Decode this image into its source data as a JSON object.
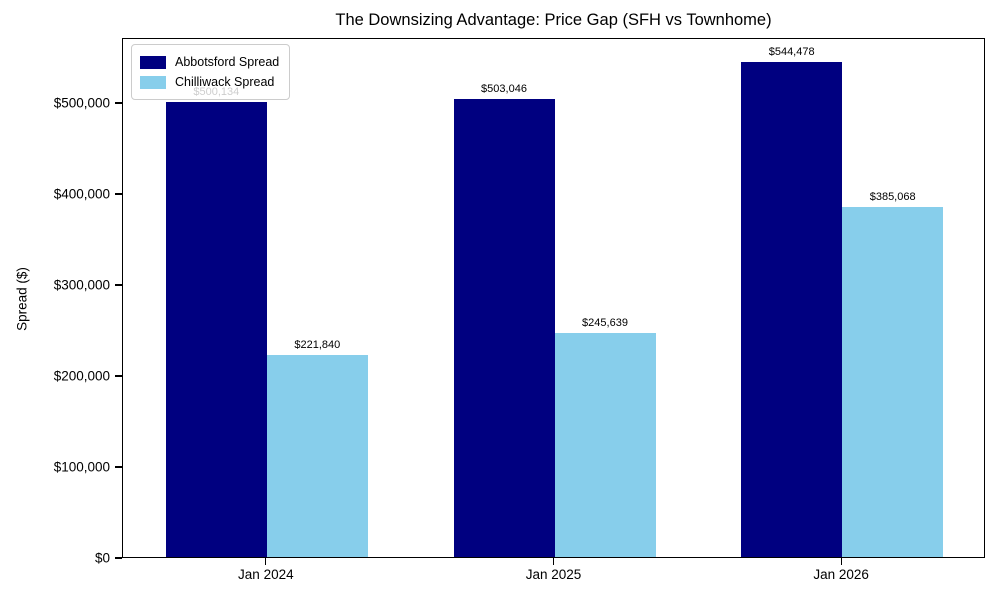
{
  "title": "The Downsizing Advantage: Price Gap (SFH vs Townhome)",
  "chart_data": {
    "type": "bar",
    "title": "The Downsizing Advantage: Price Gap (SFH vs Townhome)",
    "xlabel": "",
    "ylabel": "Spread ($)",
    "categories": [
      "Jan 2024",
      "Jan 2025",
      "Jan 2026"
    ],
    "series": [
      {
        "name": "Abbotsford Spread",
        "color": "#000080",
        "values": [
          500134,
          503046,
          544478
        ],
        "value_labels": [
          "$500,134",
          "$503,046",
          "$544,478"
        ]
      },
      {
        "name": "Chilliwack Spread",
        "color": "#87CEEB",
        "values": [
          221840,
          245639,
          385068
        ],
        "value_labels": [
          "$221,840",
          "$245,639",
          "$385,068"
        ]
      }
    ],
    "ylim": [
      0,
      571429
    ],
    "yticks": [
      0,
      100000,
      200000,
      300000,
      400000,
      500000
    ],
    "ytick_labels": [
      "$0",
      "$100,000",
      "$200,000",
      "$300,000",
      "$400,000",
      "$500,000"
    ],
    "legend_position": "upper left",
    "grid": false
  }
}
